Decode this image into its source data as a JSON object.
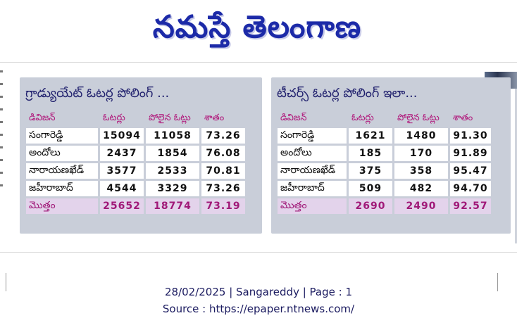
{
  "masthead": {
    "title": "నమస్తే తెలంగాణ"
  },
  "graduate": {
    "title": "గ్రాడ్యుయేట్ ఓటర్ల పోలింగ్ ...",
    "headers": [
      "డివిజన్",
      "ఓటర్లు",
      "పోలైన ఓట్లు",
      "శాతం"
    ],
    "rows": [
      [
        "సంగారెడ్డి",
        "15094",
        "11058",
        "73.26"
      ],
      [
        "అందోలు",
        "2437",
        "1854",
        "76.08"
      ],
      [
        "నారాయణఖేడ్",
        "3577",
        "2533",
        "70.81"
      ],
      [
        "జహీరాబాద్",
        "4544",
        "3329",
        "73.26"
      ]
    ],
    "total": [
      "మొత్తం",
      "25652",
      "18774",
      "73.19"
    ]
  },
  "teachers": {
    "title": "టీచర్స్ ఓటర్ల పోలింగ్ ఇలా...",
    "headers": [
      "డివిజన్",
      "ఓటర్లు",
      "పోలైన ఓట్లు",
      "శాతం"
    ],
    "rows": [
      [
        "సంగారెడ్డి",
        "1621",
        "1480",
        "91.30"
      ],
      [
        "అందోలు",
        "185",
        "170",
        "91.89"
      ],
      [
        "నారాయణఖేడ్",
        "375",
        "358",
        "95.47"
      ],
      [
        "జహీరాబాద్",
        "509",
        "482",
        "94.70"
      ]
    ],
    "total": [
      "మొత్తం",
      "2690",
      "2490",
      "92.57"
    ]
  },
  "footer": {
    "line1": "28/02/2025 | Sangareddy | Page : 1",
    "line2": "Source : https://epaper.ntnews.com/"
  },
  "colors": {
    "masthead": "#1c2aa8",
    "panel_bg": "#c9ced9",
    "header_text": "#b0167a",
    "total_bg": "#e3d3eb",
    "footer_text": "#1b1b60"
  }
}
